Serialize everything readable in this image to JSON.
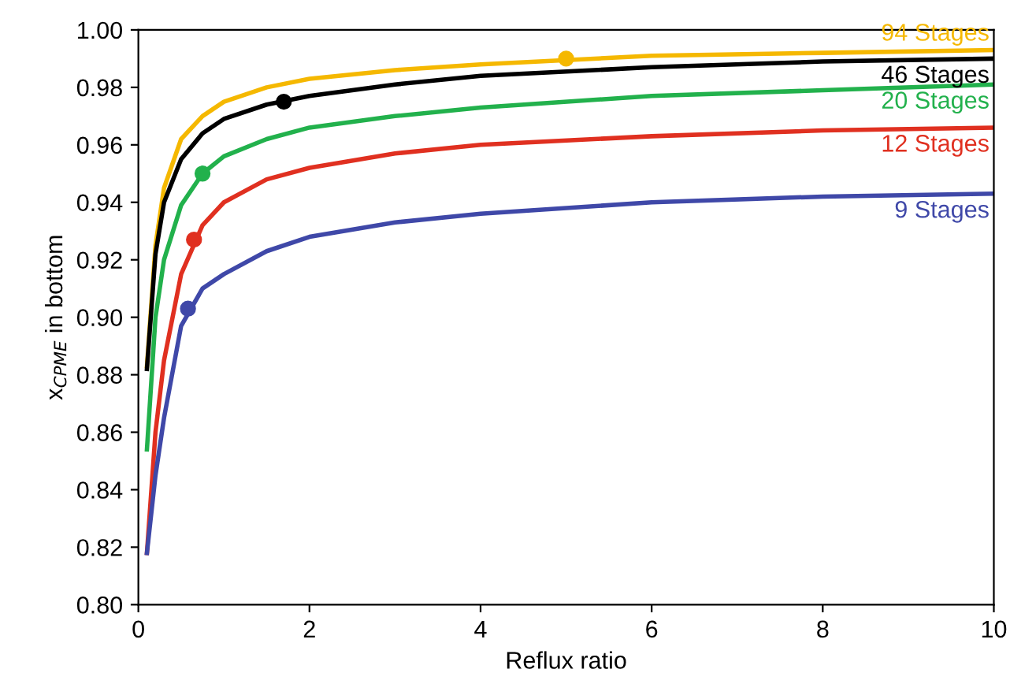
{
  "chart_data": {
    "type": "line",
    "xlabel": "Reflux ratio",
    "ylabel": "x$_{CPME}$ in bottom",
    "xlim": [
      0,
      10
    ],
    "ylim": [
      0.8,
      1.0
    ],
    "xticks": [
      0,
      2,
      4,
      6,
      8,
      10
    ],
    "yticks": [
      {
        "value": 0.8,
        "label": "0.80"
      },
      {
        "value": 0.82,
        "label": "0.82"
      },
      {
        "value": 0.84,
        "label": "0.84"
      },
      {
        "value": 0.86,
        "label": "0.86"
      },
      {
        "value": 0.88,
        "label": "0.88"
      },
      {
        "value": 0.9,
        "label": "0.90"
      },
      {
        "value": 0.92,
        "label": "0.92"
      },
      {
        "value": 0.94,
        "label": "0.94"
      },
      {
        "value": 0.96,
        "label": "0.96"
      },
      {
        "value": 0.98,
        "label": "0.98"
      },
      {
        "value": 1.0,
        "label": "1.00"
      }
    ],
    "grid": false,
    "legend": false,
    "marker": "none",
    "line_style": "solid",
    "x": [
      0.1,
      0.2,
      0.3,
      0.5,
      0.75,
      1,
      1.5,
      2,
      3,
      4,
      6,
      8,
      10
    ],
    "series": [
      {
        "name": "94 Stages",
        "color": "#f5b800",
        "values": [
          0.883,
          0.925,
          0.945,
          0.962,
          0.97,
          0.975,
          0.98,
          0.983,
          0.986,
          0.988,
          0.991,
          0.992,
          0.993
        ]
      },
      {
        "name": "46 Stages",
        "color": "#000000",
        "values": [
          0.882,
          0.922,
          0.94,
          0.955,
          0.964,
          0.969,
          0.974,
          0.977,
          0.981,
          0.984,
          0.987,
          0.989,
          0.99
        ]
      },
      {
        "name": "20 Stages",
        "color": "#22b14c",
        "values": [
          0.854,
          0.9,
          0.92,
          0.939,
          0.95,
          0.956,
          0.962,
          0.966,
          0.97,
          0.973,
          0.977,
          0.979,
          0.981
        ]
      },
      {
        "name": "12 Stages",
        "color": "#e03020",
        "values": [
          0.818,
          0.86,
          0.885,
          0.915,
          0.932,
          0.94,
          0.948,
          0.952,
          0.957,
          0.96,
          0.963,
          0.965,
          0.966
        ]
      },
      {
        "name": "9 Stages",
        "color": "#3f48a8",
        "values": [
          0.818,
          0.845,
          0.865,
          0.897,
          0.91,
          0.915,
          0.923,
          0.928,
          0.933,
          0.936,
          0.94,
          0.942,
          0.943
        ]
      },
      {
        "type": "scatter",
        "marker": "circle",
        "color": "#f5b800",
        "x": [
          5
        ],
        "values": [
          0.99
        ]
      },
      {
        "type": "scatter",
        "marker": "circle",
        "color": "#000000",
        "x": [
          1.7
        ],
        "values": [
          0.975
        ]
      },
      {
        "type": "scatter",
        "marker": "circle",
        "color": "#22b14c",
        "x": [
          0.75
        ],
        "values": [
          0.95
        ]
      },
      {
        "type": "scatter",
        "marker": "circle",
        "color": "#e03020",
        "x": [
          0.65
        ],
        "values": [
          0.927
        ]
      },
      {
        "type": "scatter",
        "marker": "circle",
        "color": "#3f48a8",
        "x": [
          0.58
        ],
        "values": [
          0.903
        ]
      }
    ]
  }
}
